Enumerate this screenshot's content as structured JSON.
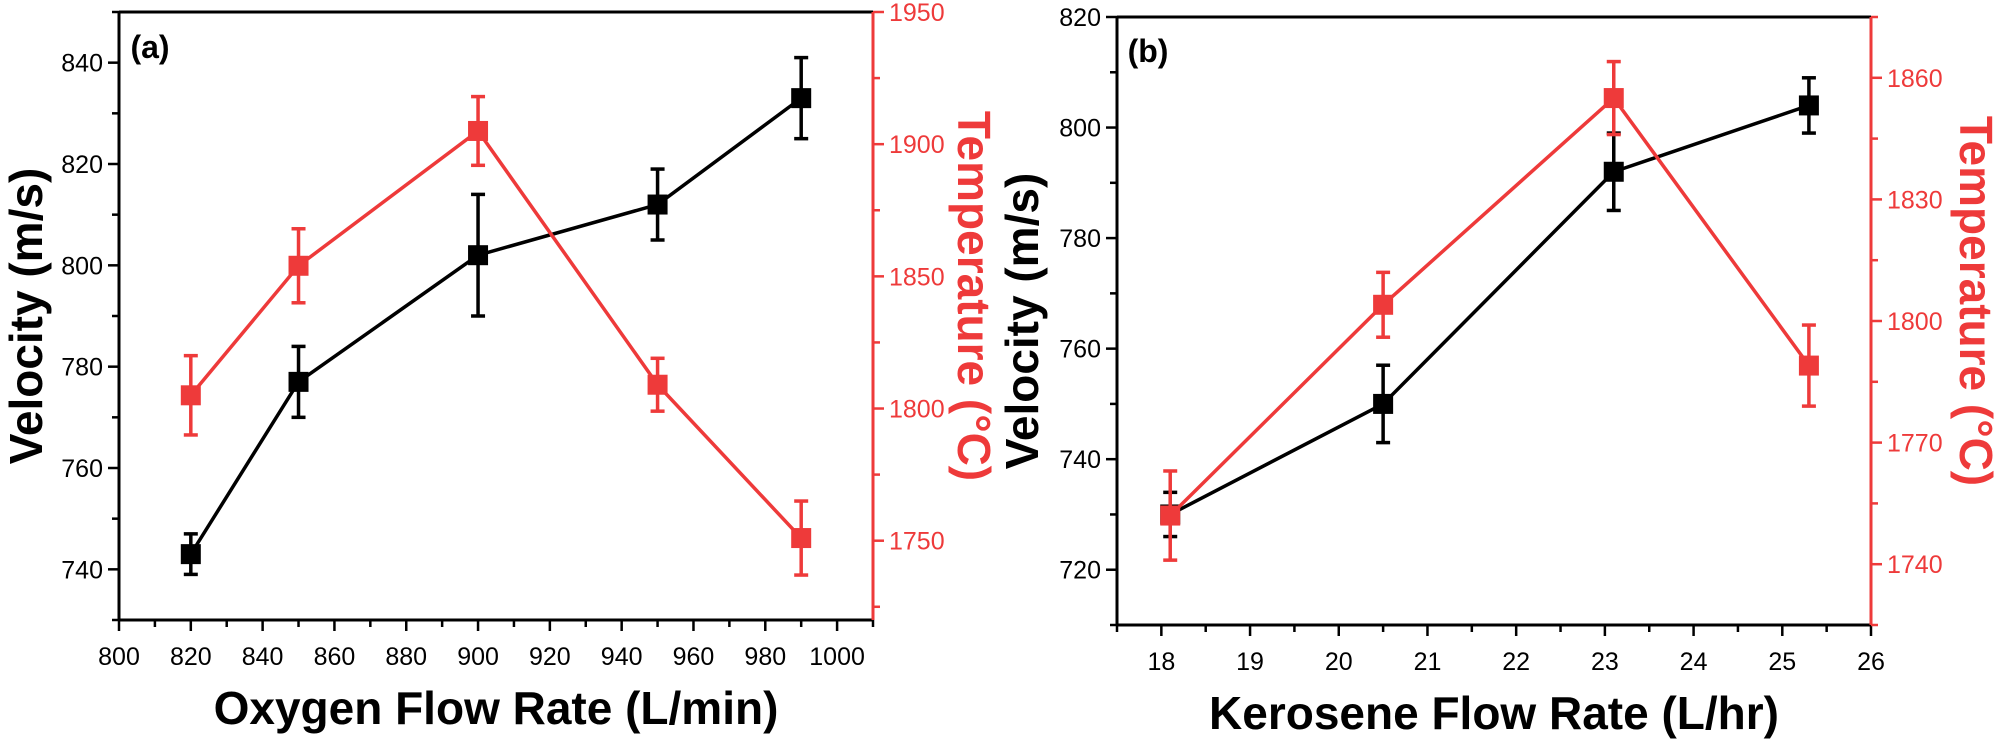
{
  "colors": {
    "velocity": "#000000",
    "temperature": "#ee3a3a"
  },
  "chart_data": [
    {
      "type": "line",
      "panel_label": "(a)",
      "xlabel": "Oxygen Flow Rate (L/min)",
      "ylabel": "Velocity (m/s)",
      "y2label": "Temperature (°C)",
      "xlim": [
        800,
        1010
      ],
      "ylim": [
        730,
        850
      ],
      "y2lim": [
        1720,
        1950
      ],
      "xticks": [
        800,
        820,
        840,
        860,
        880,
        900,
        920,
        940,
        960,
        980,
        1000
      ],
      "xminor": 10,
      "yticks": [
        740,
        760,
        780,
        800,
        820,
        840
      ],
      "yminor": 10,
      "y2ticks": [
        1750,
        1800,
        1850,
        1900,
        1950
      ],
      "y2minor": 25,
      "series": [
        {
          "name": "Velocity",
          "axis": "left",
          "x": [
            820,
            850,
            900,
            950,
            990
          ],
          "y": [
            743,
            777,
            802,
            812,
            833
          ],
          "err": [
            4,
            7,
            12,
            7,
            8
          ]
        },
        {
          "name": "Temperature",
          "axis": "right",
          "x": [
            820,
            850,
            900,
            950,
            990
          ],
          "y": [
            1805,
            1854,
            1905,
            1809,
            1751
          ],
          "err": [
            15,
            14,
            13,
            10,
            14
          ]
        }
      ]
    },
    {
      "type": "line",
      "panel_label": "(b)",
      "xlabel": "Kerosene Flow Rate (L/hr)",
      "ylabel": "Velocity (m/s)",
      "y2label": "Temperature (°C)",
      "xlim": [
        17.5,
        26
      ],
      "ylim": [
        710,
        820
      ],
      "y2lim": [
        1725,
        1875
      ],
      "xticks": [
        18,
        19,
        20,
        21,
        22,
        23,
        24,
        25,
        26
      ],
      "xminor": 0.5,
      "yticks": [
        720,
        740,
        760,
        780,
        800,
        820
      ],
      "yminor": 10,
      "y2ticks": [
        1740,
        1770,
        1800,
        1830,
        1860
      ],
      "y2minor": 15,
      "series": [
        {
          "name": "Velocity",
          "axis": "left",
          "x": [
            18.1,
            20.5,
            23.1,
            25.3
          ],
          "y": [
            730,
            750,
            792,
            804
          ],
          "err": [
            4,
            7,
            7,
            5
          ]
        },
        {
          "name": "Temperature",
          "axis": "right",
          "x": [
            18.1,
            20.5,
            23.1,
            25.3
          ],
          "y": [
            1752,
            1804,
            1855,
            1789
          ],
          "err": [
            11,
            8,
            9,
            10
          ]
        }
      ]
    }
  ]
}
